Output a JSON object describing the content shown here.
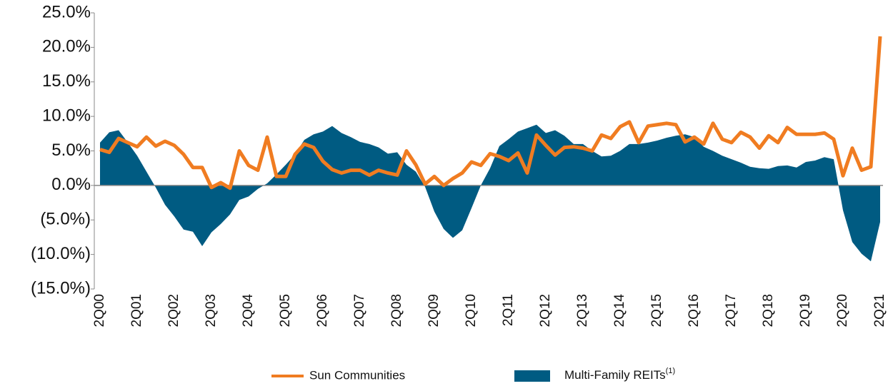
{
  "chart_data": {
    "type": "line-area",
    "categories": [
      "2Q00",
      null,
      null,
      null,
      "2Q01",
      null,
      null,
      null,
      "2Q02",
      null,
      null,
      null,
      "2Q03",
      null,
      null,
      null,
      "2Q04",
      null,
      null,
      null,
      "2Q05",
      null,
      null,
      null,
      "2Q06",
      null,
      null,
      null,
      "2Q07",
      null,
      null,
      null,
      "2Q08",
      null,
      null,
      null,
      "2Q09",
      null,
      null,
      null,
      "2Q10",
      null,
      null,
      null,
      "2Q11",
      null,
      null,
      null,
      "2Q12",
      null,
      null,
      null,
      "2Q13",
      null,
      null,
      null,
      "2Q14",
      null,
      null,
      null,
      "2Q15",
      null,
      null,
      null,
      "2Q16",
      null,
      null,
      null,
      "2Q17",
      null,
      null,
      null,
      "2Q18",
      null,
      null,
      null,
      "2Q19",
      null,
      null,
      null,
      "2Q20",
      null,
      null,
      null,
      "2Q21"
    ],
    "series": [
      {
        "name": "Sun Communities",
        "kind": "line",
        "color": "#f07c21",
        "values": [
          5.2,
          4.8,
          6.8,
          6.2,
          5.6,
          7.0,
          5.7,
          6.4,
          5.8,
          4.5,
          2.6,
          2.6,
          -0.3,
          0.4,
          -0.4,
          5.0,
          2.9,
          2.2,
          7.0,
          1.3,
          1.3,
          4.5,
          6.0,
          5.5,
          3.5,
          2.3,
          1.8,
          2.2,
          2.2,
          1.5,
          2.2,
          1.8,
          1.5,
          5.0,
          3.0,
          0.2,
          1.3,
          0.0,
          1.0,
          1.8,
          3.4,
          2.9,
          4.6,
          4.2,
          3.6,
          4.7,
          1.8,
          7.3,
          5.8,
          4.4,
          5.5,
          5.6,
          5.4,
          5.0,
          7.3,
          6.8,
          8.5,
          9.2,
          6.2,
          8.6,
          8.8,
          9.0,
          8.8,
          6.3,
          7.0,
          6.0,
          9.0,
          6.7,
          6.2,
          7.7,
          7.0,
          5.4,
          7.2,
          6.2,
          8.4,
          7.4,
          7.4,
          7.4,
          7.6,
          6.7,
          1.4,
          5.4,
          2.2,
          2.7,
          21.6
        ]
      },
      {
        "name": "Multi-Family REITs",
        "name_superscript": "(1)",
        "kind": "area",
        "color": "#005b82",
        "values": [
          6.2,
          7.7,
          8.0,
          6.2,
          4.3,
          2.0,
          -0.3,
          -2.8,
          -4.5,
          -6.4,
          -6.7,
          -8.8,
          -6.8,
          -5.6,
          -4.2,
          -2.1,
          -1.6,
          -0.5,
          0.3,
          1.6,
          3.0,
          4.5,
          6.6,
          7.4,
          7.8,
          8.6,
          7.6,
          7.0,
          6.3,
          6.0,
          5.5,
          4.6,
          4.8,
          3.0,
          2.0,
          -0.2,
          -3.8,
          -6.3,
          -7.6,
          -6.5,
          -3.3,
          0.0,
          2.5,
          5.7,
          6.7,
          7.8,
          8.3,
          8.8,
          7.6,
          8.0,
          7.2,
          6.0,
          6.0,
          5.0,
          4.2,
          4.3,
          5.0,
          6.0,
          6.0,
          6.2,
          6.5,
          6.9,
          7.2,
          7.4,
          7.0,
          5.6,
          5.0,
          4.3,
          3.8,
          3.3,
          2.7,
          2.5,
          2.4,
          2.8,
          2.9,
          2.6,
          3.4,
          3.6,
          4.1,
          3.8,
          -3.6,
          -8.2,
          -9.9,
          -11.0,
          -5.3
        ]
      }
    ],
    "ylim": [
      -15,
      25
    ],
    "yticks": [
      {
        "value": -15,
        "label": "(15.0%)"
      },
      {
        "value": -10,
        "label": "(10.0%)"
      },
      {
        "value": -5,
        "label": "(5.0%)"
      },
      {
        "value": 0,
        "label": "0.0%"
      },
      {
        "value": 5,
        "label": "5.0%"
      },
      {
        "value": 10,
        "label": "10.0%"
      },
      {
        "value": 15,
        "label": "15.0%"
      },
      {
        "value": 20,
        "label": "20.0%"
      },
      {
        "value": 25,
        "label": "25.0%"
      }
    ],
    "legend": "bottom"
  }
}
